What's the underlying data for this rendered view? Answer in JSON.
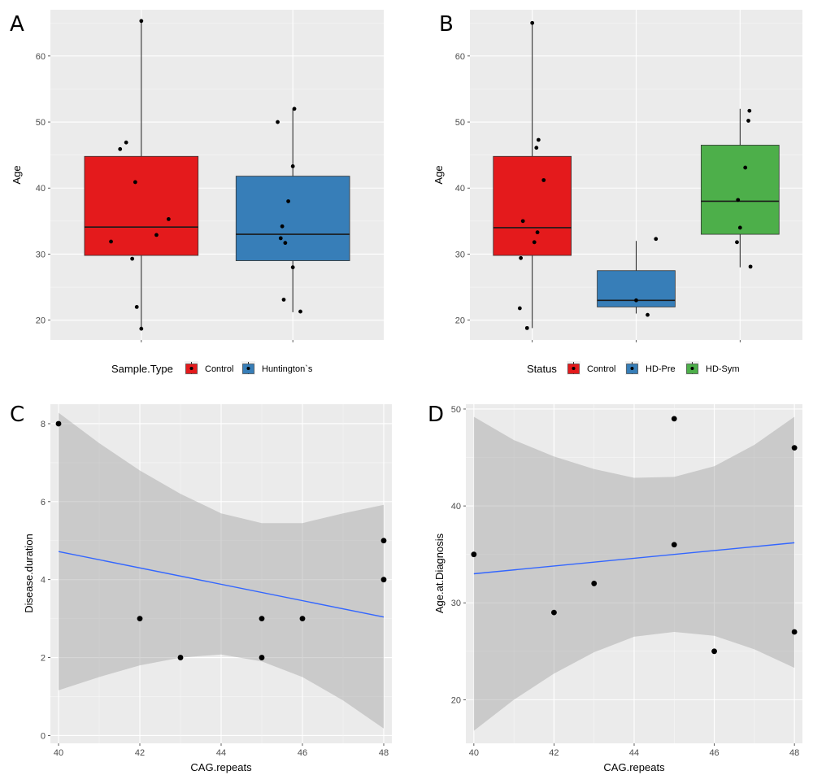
{
  "chart_data": [
    {
      "panel": "A",
      "type": "box",
      "xlabel": "",
      "ylabel": "Age",
      "ylim": [
        17,
        67
      ],
      "yticks": [
        20,
        30,
        40,
        50,
        60
      ],
      "grid": true,
      "legend": {
        "title": "Sample.Type",
        "placement": "bottom",
        "entries": [
          {
            "label": "Control",
            "color": "#E41A1C"
          },
          {
            "label": "Huntington`s",
            "color": "#377EB8"
          }
        ]
      },
      "groups": [
        {
          "name": "Control",
          "color": "#E41A1C",
          "box": {
            "min": 18.7,
            "q1": 29.8,
            "median": 34.1,
            "q3": 44.8,
            "max": 65.3
          },
          "points": [
            65.3,
            46.9,
            45.9,
            40.9,
            35.3,
            32.9,
            31.9,
            29.3,
            22.0,
            18.7
          ],
          "jitter": [
            0.0,
            -0.1,
            -0.14,
            -0.04,
            0.18,
            0.1,
            -0.2,
            -0.06,
            -0.03,
            0.0
          ]
        },
        {
          "name": "Huntington`s",
          "color": "#377EB8",
          "box": {
            "min": 21.2,
            "q1": 29.0,
            "median": 33.0,
            "q3": 41.8,
            "max": 52.0
          },
          "points": [
            52.0,
            50.0,
            43.3,
            38.0,
            34.2,
            32.4,
            31.7,
            28.0,
            23.1,
            21.3
          ],
          "jitter": [
            0.01,
            -0.1,
            0.0,
            -0.03,
            -0.07,
            -0.08,
            -0.05,
            0.0,
            -0.06,
            0.05
          ]
        }
      ]
    },
    {
      "panel": "B",
      "type": "box",
      "xlabel": "",
      "ylabel": "Age",
      "ylim": [
        17,
        67
      ],
      "yticks": [
        20,
        30,
        40,
        50,
        60
      ],
      "grid": true,
      "legend": {
        "title": "Status",
        "placement": "bottom",
        "entries": [
          {
            "label": "Control",
            "color": "#E41A1C"
          },
          {
            "label": "HD-Pre",
            "color": "#377EB8"
          },
          {
            "label": "HD-Sym",
            "color": "#4DAF4A"
          }
        ]
      },
      "groups": [
        {
          "name": "Control",
          "color": "#E41A1C",
          "box": {
            "min": 18.8,
            "q1": 29.8,
            "median": 34.0,
            "q3": 44.8,
            "max": 65.0
          },
          "points": [
            65.0,
            47.3,
            46.1,
            41.2,
            35.0,
            33.3,
            31.8,
            29.4,
            21.8,
            18.8
          ],
          "jitter": [
            0.0,
            0.06,
            0.04,
            0.11,
            -0.09,
            0.05,
            0.02,
            -0.11,
            -0.12,
            -0.05
          ]
        },
        {
          "name": "HD-Pre",
          "color": "#377EB8",
          "box": {
            "min": 21.0,
            "q1": 22.0,
            "median": 23.0,
            "q3": 27.5,
            "max": 32.0
          },
          "points": [
            32.3,
            23.0,
            20.8
          ],
          "jitter": [
            0.19,
            0.0,
            0.11
          ]
        },
        {
          "name": "HD-Sym",
          "color": "#4DAF4A",
          "box": {
            "min": 28.0,
            "q1": 33.0,
            "median": 38.0,
            "q3": 46.5,
            "max": 52.0
          },
          "points": [
            51.7,
            50.2,
            43.1,
            38.2,
            34.0,
            31.8,
            28.1
          ],
          "jitter": [
            0.09,
            0.08,
            0.05,
            -0.02,
            0.0,
            -0.03,
            0.1
          ]
        }
      ]
    },
    {
      "panel": "C",
      "type": "scatter",
      "xlabel": "CAG.repeats",
      "ylabel": "Disease.duration",
      "xlim": [
        39.8,
        48.2
      ],
      "ylim": [
        -0.2,
        8.5
      ],
      "xticks": [
        40,
        42,
        44,
        46,
        48
      ],
      "yticks": [
        0,
        2,
        4,
        6,
        8
      ],
      "grid": true,
      "points": {
        "x": [
          40,
          42,
          43,
          45,
          45,
          46,
          48,
          48
        ],
        "y": [
          8,
          3,
          2,
          3,
          2,
          3,
          5,
          4
        ]
      },
      "fit": {
        "x": [
          40,
          48
        ],
        "y": [
          4.72,
          3.04
        ],
        "color": "#3366FF"
      },
      "ribbon": {
        "x": [
          40,
          41,
          42,
          43,
          44,
          45,
          46,
          47,
          48
        ],
        "lower": [
          1.16,
          1.5,
          1.8,
          2.0,
          2.08,
          1.9,
          1.5,
          0.9,
          0.18
        ],
        "upper": [
          8.28,
          7.5,
          6.8,
          6.2,
          5.7,
          5.45,
          5.45,
          5.7,
          5.92
        ]
      }
    },
    {
      "panel": "D",
      "type": "scatter",
      "xlabel": "CAG.repeats",
      "ylabel": "Age.at.Diagnosis",
      "xlim": [
        39.8,
        48.2
      ],
      "ylim": [
        15.5,
        50.5
      ],
      "xticks": [
        40,
        42,
        44,
        46,
        48
      ],
      "yticks": [
        20,
        30,
        40,
        50
      ],
      "grid": true,
      "points": {
        "x": [
          40,
          42,
          43,
          45,
          45,
          46,
          48,
          48
        ],
        "y": [
          35,
          29,
          32,
          49,
          36,
          25,
          46,
          27
        ]
      },
      "fit": {
        "x": [
          40,
          48
        ],
        "y": [
          33.0,
          36.2
        ],
        "color": "#3366FF"
      },
      "ribbon": {
        "x": [
          40,
          41,
          42,
          43,
          44,
          45,
          46,
          47,
          48
        ],
        "lower": [
          16.8,
          20.0,
          22.7,
          24.9,
          26.5,
          27.0,
          26.6,
          25.2,
          23.3
        ],
        "upper": [
          49.2,
          46.8,
          45.1,
          43.8,
          42.9,
          43.0,
          44.1,
          46.3,
          49.2
        ]
      }
    }
  ]
}
